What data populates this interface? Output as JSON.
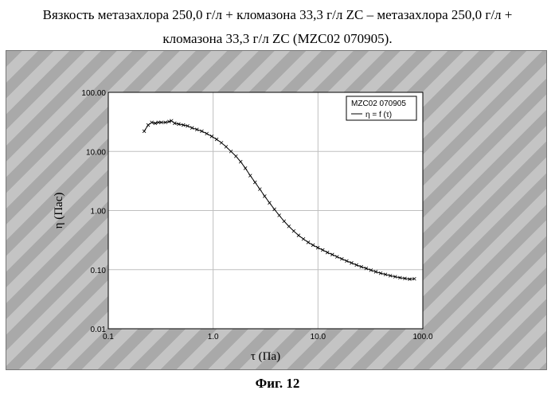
{
  "caption": {
    "line1": "Вязкость метазахлора 250,0 г/л + кломазона 33,3 г/л ZC – метазахлора 250,0 г/л +",
    "line2": "кломазона 33,3 г/л ZC (MZC02 070905)."
  },
  "figure_label": "Фиг. 12",
  "colors": {
    "line": "#000000",
    "grid": "#bfbfbf",
    "plot_bg": "#ffffff"
  },
  "chart_data": {
    "type": "line",
    "xscale": "log",
    "yscale": "log",
    "xlim": [
      0.1,
      100
    ],
    "ylim": [
      0.01,
      100
    ],
    "xticks": [
      {
        "value": 0.1,
        "label": "0.1"
      },
      {
        "value": 1,
        "label": "1.0"
      },
      {
        "value": 10,
        "label": "10.0"
      },
      {
        "value": 100,
        "label": "100.0"
      }
    ],
    "yticks": [
      {
        "value": 0.01,
        "label": "0.01"
      },
      {
        "value": 0.1,
        "label": "0.10"
      },
      {
        "value": 1,
        "label": "1.00"
      },
      {
        "value": 10,
        "label": "10.00"
      },
      {
        "value": 100,
        "label": "100.00"
      }
    ],
    "xlabel": "τ (Па)",
    "ylabel": "η (Пас)",
    "grid": true,
    "legend": {
      "position": "top-right",
      "title": "MZC02 070905",
      "entry": "η = f (τ)"
    },
    "series": [
      {
        "name": "η = f (τ)",
        "x": [
          0.22,
          0.24,
          0.26,
          0.28,
          0.3,
          0.32,
          0.35,
          0.38,
          0.4,
          0.43,
          0.47,
          0.52,
          0.57,
          0.63,
          0.7,
          0.78,
          0.87,
          0.97,
          1.08,
          1.2,
          1.33,
          1.48,
          1.65,
          1.83,
          2.03,
          2.26,
          2.51,
          2.79,
          3.1,
          3.45,
          3.84,
          4.27,
          4.75,
          5.28,
          5.87,
          6.53,
          7.26,
          8.07,
          8.97,
          9.97,
          11.1,
          12.3,
          13.7,
          15.2,
          16.9,
          18.8,
          20.9,
          23.3,
          25.9,
          28.8,
          32.0,
          35.6,
          39.6,
          44.0,
          49.0,
          54.5,
          60.6,
          67.4,
          75.0,
          83.0
        ],
        "y": [
          22,
          28,
          31,
          30,
          31,
          31,
          31,
          32,
          33,
          30,
          29,
          28,
          27,
          25,
          23.5,
          22,
          20,
          18,
          16,
          14,
          12,
          10,
          8.3,
          6.7,
          5.2,
          3.9,
          3.0,
          2.3,
          1.75,
          1.35,
          1.05,
          0.83,
          0.66,
          0.54,
          0.45,
          0.38,
          0.33,
          0.29,
          0.26,
          0.235,
          0.215,
          0.195,
          0.18,
          0.165,
          0.152,
          0.14,
          0.13,
          0.12,
          0.112,
          0.105,
          0.098,
          0.092,
          0.087,
          0.083,
          0.079,
          0.076,
          0.073,
          0.071,
          0.069,
          0.07
        ]
      }
    ]
  }
}
